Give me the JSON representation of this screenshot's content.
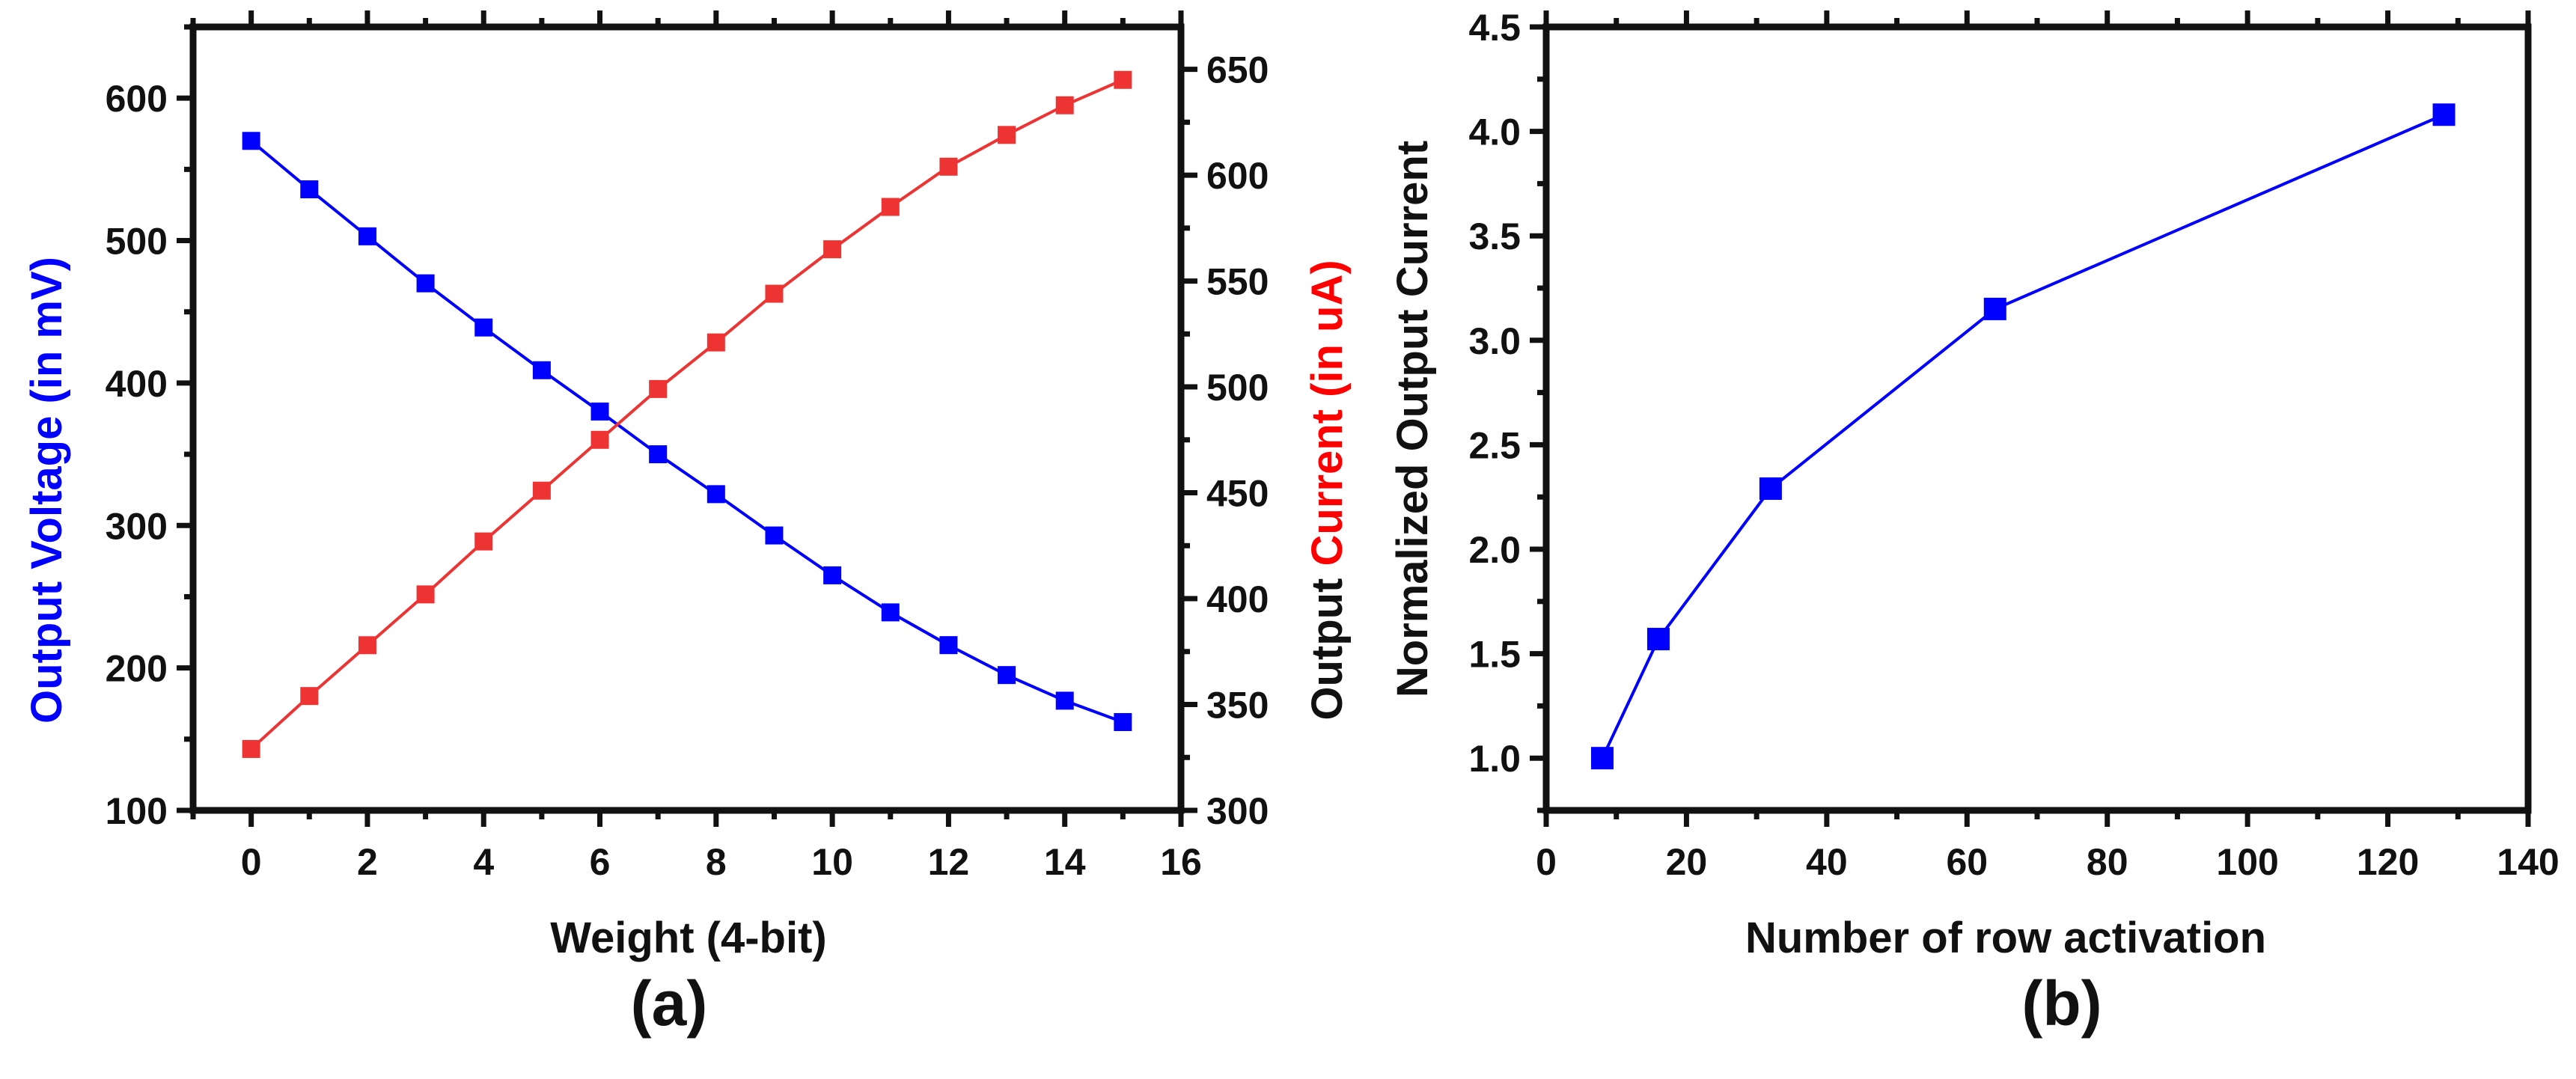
{
  "chart_data": [
    {
      "type": "line",
      "caption": "(a)",
      "xlabel": "Weight (4-bit)",
      "ylabel_left": "Output Voltage (in mV)",
      "ylabel_left_color": "#0000ff",
      "ylabel_right_parts": [
        "Output ",
        "Current (in uA)"
      ],
      "ylabel_right_colors": [
        "#111111",
        "#ff0000"
      ],
      "xlim": [
        -1,
        16
      ],
      "xticks": [
        0,
        2,
        4,
        6,
        8,
        10,
        12,
        14,
        16
      ],
      "ylim_left": [
        100,
        650
      ],
      "yticks_left": [
        100,
        200,
        300,
        400,
        500,
        600
      ],
      "ylim_right": [
        300,
        670
      ],
      "yticks_right": [
        300,
        350,
        400,
        450,
        500,
        550,
        600,
        650
      ],
      "x": [
        0,
        1,
        2,
        3,
        4,
        5,
        6,
        7,
        8,
        9,
        10,
        11,
        12,
        13,
        14,
        15
      ],
      "series": [
        {
          "axis": "left",
          "color": "#0000ff",
          "values": [
            570,
            536,
            503,
            470,
            439,
            409,
            380,
            350,
            322,
            293,
            265,
            239,
            216,
            195,
            177,
            162
          ]
        },
        {
          "axis": "right",
          "color": "#ee3333",
          "values": [
            329,
            354,
            378,
            402,
            427,
            451,
            475,
            499,
            521,
            544,
            565,
            585,
            604,
            619,
            633,
            645
          ]
        }
      ],
      "grid": false
    },
    {
      "type": "line",
      "caption": "(b)",
      "xlabel": "Number of row activation",
      "ylabel": "Normalized Output Current",
      "xlim": [
        0,
        140
      ],
      "xticks": [
        0,
        20,
        40,
        60,
        80,
        100,
        120,
        140
      ],
      "ylim": [
        0.75,
        4.5
      ],
      "yticks": [
        "1.0",
        "1.5",
        "2.0",
        "2.5",
        "3.0",
        "3.5",
        "4.0",
        "4.5"
      ],
      "series": [
        {
          "color": "#0000ff",
          "x": [
            8,
            16,
            32,
            64,
            128
          ],
          "y": [
            1.0,
            1.57,
            2.29,
            3.15,
            4.08
          ]
        }
      ],
      "grid": false
    }
  ]
}
